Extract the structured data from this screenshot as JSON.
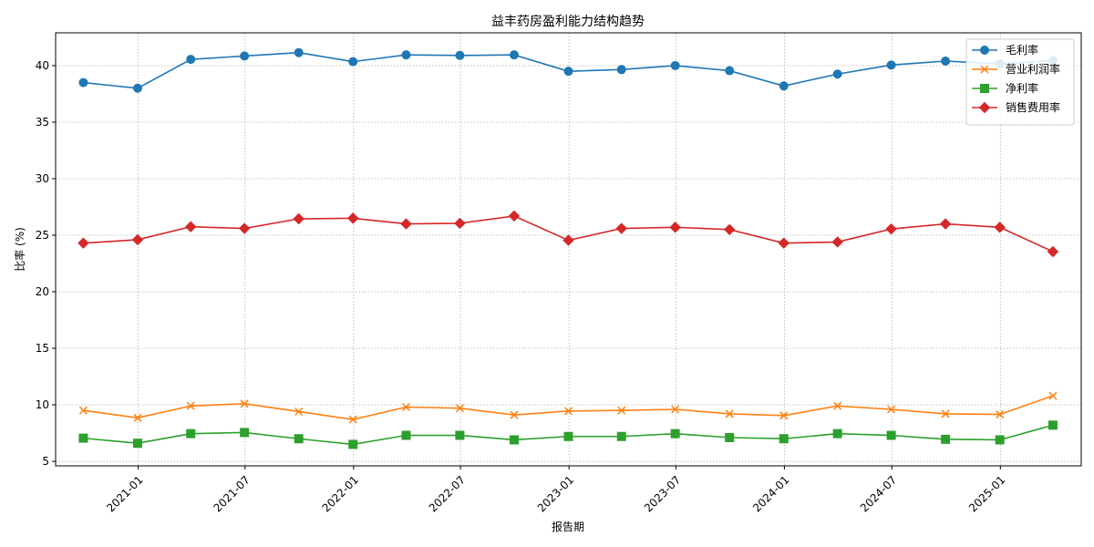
{
  "chart_data": {
    "type": "line",
    "title": "益丰药房盈利能力结构趋势",
    "xlabel": "报告期",
    "ylabel": "比率 (%)",
    "ylim": [
      4.6,
      42.9
    ],
    "yticks": [
      5,
      10,
      15,
      20,
      25,
      30,
      35,
      40
    ],
    "xlim": [
      "2020-08-14",
      "2025-05-18"
    ],
    "xticks": [
      "2021-01",
      "2021-07",
      "2022-01",
      "2022-07",
      "2023-01",
      "2023-07",
      "2024-01",
      "2024-07",
      "2025-01"
    ],
    "grid": true,
    "legend_position": "top-right",
    "x": [
      "2020-09-30",
      "2020-12-31",
      "2021-03-31",
      "2021-06-30",
      "2021-09-30",
      "2021-12-31",
      "2022-03-31",
      "2022-06-30",
      "2022-09-30",
      "2022-12-31",
      "2023-03-31",
      "2023-06-30",
      "2023-09-30",
      "2023-12-31",
      "2024-03-31",
      "2024-06-30",
      "2024-09-30",
      "2024-12-31",
      "2025-03-31"
    ],
    "series": [
      {
        "name": "毛利率",
        "color": "#1f77b4",
        "marker": "circle",
        "values": [
          38.5,
          38.0,
          40.55,
          40.85,
          41.15,
          40.35,
          40.95,
          40.9,
          40.95,
          39.5,
          39.65,
          40.0,
          39.55,
          38.2,
          39.25,
          40.05,
          40.4,
          40.15,
          40.45
        ]
      },
      {
        "name": "营业利润率",
        "color": "#ff7f0e",
        "marker": "x",
        "values": [
          9.5,
          8.85,
          9.9,
          10.1,
          9.4,
          8.7,
          9.8,
          9.7,
          9.1,
          9.45,
          9.5,
          9.6,
          9.2,
          9.05,
          9.9,
          9.6,
          9.2,
          9.15,
          10.8
        ]
      },
      {
        "name": "净利率",
        "color": "#2ca02c",
        "marker": "square",
        "values": [
          7.05,
          6.6,
          7.45,
          7.55,
          7.0,
          6.5,
          7.3,
          7.3,
          6.9,
          7.2,
          7.2,
          7.45,
          7.1,
          7.0,
          7.45,
          7.3,
          6.95,
          6.9,
          8.2
        ]
      },
      {
        "name": "销售费用率",
        "color": "#d62728",
        "marker": "diamond",
        "values": [
          24.3,
          24.6,
          25.75,
          25.6,
          26.45,
          26.5,
          26.0,
          26.05,
          26.7,
          24.55,
          25.6,
          25.7,
          25.5,
          24.3,
          24.4,
          25.55,
          26.0,
          25.7,
          23.55
        ]
      }
    ]
  }
}
